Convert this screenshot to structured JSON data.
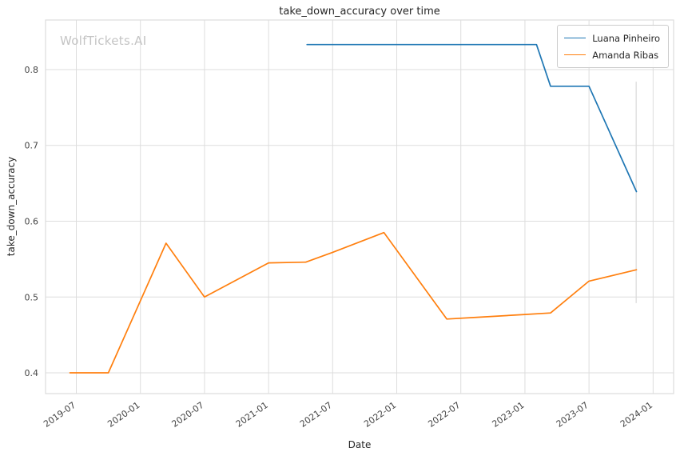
{
  "watermark": "WolfTickets.AI",
  "chart_data": {
    "type": "line",
    "title": "take_down_accuracy over time",
    "xlabel": "Date",
    "ylabel": "take_down_accuracy",
    "grid": true,
    "grid_color": "#dddddd",
    "tick_color": "#444444",
    "legend_position": "top-right",
    "xlim": [
      2019.26,
      2024.16
    ],
    "ylim": [
      0.3726,
      0.8654
    ],
    "x_ticks": [
      {
        "v": 2019.5,
        "label": "2019-07"
      },
      {
        "v": 2020.0,
        "label": "2020-01"
      },
      {
        "v": 2020.5,
        "label": "2020-07"
      },
      {
        "v": 2021.0,
        "label": "2021-01"
      },
      {
        "v": 2021.5,
        "label": "2021-07"
      },
      {
        "v": 2022.0,
        "label": "2022-01"
      },
      {
        "v": 2022.5,
        "label": "2022-07"
      },
      {
        "v": 2023.0,
        "label": "2023-01"
      },
      {
        "v": 2023.5,
        "label": "2023-07"
      },
      {
        "v": 2024.0,
        "label": "2024-01"
      }
    ],
    "y_ticks": [
      {
        "v": 0.4,
        "label": "0.4"
      },
      {
        "v": 0.5,
        "label": "0.5"
      },
      {
        "v": 0.6,
        "label": "0.6"
      },
      {
        "v": 0.7,
        "label": "0.7"
      },
      {
        "v": 0.8,
        "label": "0.8"
      }
    ],
    "series": [
      {
        "name": "Luana Pinheiro",
        "color": "#1f77b4",
        "points": [
          [
            2021.3,
            0.833
          ],
          [
            2023.09,
            0.833
          ],
          [
            2023.2,
            0.778
          ],
          [
            2023.5,
            0.778
          ],
          [
            2023.87,
            0.639
          ]
        ]
      },
      {
        "name": "Amanda Ribas",
        "color": "#ff7f0e",
        "points": [
          [
            2019.45,
            0.4
          ],
          [
            2019.75,
            0.4
          ],
          [
            2020.2,
            0.571
          ],
          [
            2020.5,
            0.5
          ],
          [
            2021.0,
            0.545
          ],
          [
            2021.29,
            0.546
          ],
          [
            2021.5,
            0.559
          ],
          [
            2021.9,
            0.585
          ],
          [
            2022.39,
            0.471
          ],
          [
            2022.6,
            0.473
          ],
          [
            2023.0,
            0.477
          ],
          [
            2023.2,
            0.479
          ],
          [
            2023.5,
            0.521
          ],
          [
            2023.87,
            0.536
          ]
        ]
      }
    ],
    "annotations": [
      {
        "type": "vline-segment",
        "x": 2023.868,
        "y1": 0.492,
        "y2": 0.784,
        "color": "#d8d8d8"
      }
    ]
  }
}
